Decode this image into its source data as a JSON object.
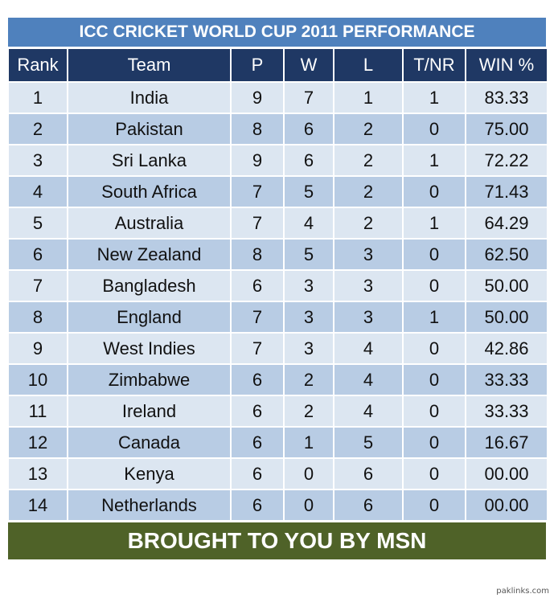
{
  "title": "ICC CRICKET WORLD CUP 2011 PERFORMANCE",
  "columns": [
    "Rank",
    "Team",
    "P",
    "W",
    "L",
    "T/NR",
    "WIN %"
  ],
  "rows": [
    {
      "rank": "1",
      "team": "India",
      "p": "9",
      "w": "7",
      "l": "1",
      "tnr": "1",
      "win": "83.33"
    },
    {
      "rank": "2",
      "team": "Pakistan",
      "p": "8",
      "w": "6",
      "l": "2",
      "tnr": "0",
      "win": "75.00"
    },
    {
      "rank": "3",
      "team": "Sri Lanka",
      "p": "9",
      "w": "6",
      "l": "2",
      "tnr": "1",
      "win": "72.22"
    },
    {
      "rank": "4",
      "team": "South Africa",
      "p": "7",
      "w": "5",
      "l": "2",
      "tnr": "0",
      "win": "71.43"
    },
    {
      "rank": "5",
      "team": "Australia",
      "p": "7",
      "w": "4",
      "l": "2",
      "tnr": "1",
      "win": "64.29"
    },
    {
      "rank": "6",
      "team": "New Zealand",
      "p": "8",
      "w": "5",
      "l": "3",
      "tnr": "0",
      "win": "62.50"
    },
    {
      "rank": "7",
      "team": "Bangladesh",
      "p": "6",
      "w": "3",
      "l": "3",
      "tnr": "0",
      "win": "50.00"
    },
    {
      "rank": "8",
      "team": "England",
      "p": "7",
      "w": "3",
      "l": "3",
      "tnr": "1",
      "win": "50.00"
    },
    {
      "rank": "9",
      "team": "West Indies",
      "p": "7",
      "w": "3",
      "l": "4",
      "tnr": "0",
      "win": "42.86"
    },
    {
      "rank": "10",
      "team": "Zimbabwe",
      "p": "6",
      "w": "2",
      "l": "4",
      "tnr": "0",
      "win": "33.33"
    },
    {
      "rank": "11",
      "team": "Ireland",
      "p": "6",
      "w": "2",
      "l": "4",
      "tnr": "0",
      "win": "33.33"
    },
    {
      "rank": "12",
      "team": "Canada",
      "p": "6",
      "w": "1",
      "l": "5",
      "tnr": "0",
      "win": "16.67"
    },
    {
      "rank": "13",
      "team": "Kenya",
      "p": "6",
      "w": "0",
      "l": "6",
      "tnr": "0",
      "win": "00.00"
    },
    {
      "rank": "14",
      "team": "Netherlands",
      "p": "6",
      "w": "0",
      "l": "6",
      "tnr": "0",
      "win": "00.00"
    }
  ],
  "footer": "BROUGHT TO YOU BY MSN",
  "watermark": "paklinks.com",
  "colors": {
    "title_bg": "#4f81bd",
    "header_bg": "#1f3864",
    "row_light": "#dce6f1",
    "row_dark": "#b8cce4",
    "footer_bg": "#4f6228"
  }
}
